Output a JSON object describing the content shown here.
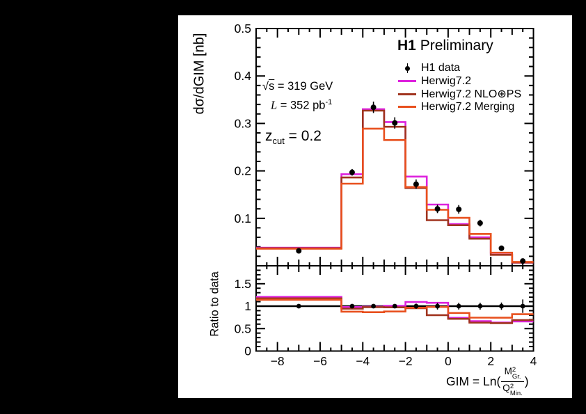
{
  "figure": {
    "background": "#000000",
    "canvas_background": "#ffffff"
  },
  "heading": {
    "experiment": "H1",
    "status": " Preliminary"
  },
  "conditions": {
    "sqrt_symbol": "√",
    "sqrt_var": "s",
    "sqrt_value": " = 319 GeV",
    "lumi_var": "L",
    "lumi_value": " = 352 pb",
    "lumi_exponent": "-1",
    "zcut_var": "z",
    "zcut_sub": "cut",
    "zcut_value": " = 0.2"
  },
  "legend": {
    "entries": [
      {
        "label": "H1 data"
      },
      {
        "label": "Herwig7.2"
      },
      {
        "label": "Herwig7.2 NLO⊕PS"
      },
      {
        "label": "Herwig7.2 Merging"
      }
    ]
  },
  "axes": {
    "main_y_title": "dσ/dGIM [nb]",
    "ratio_y_title": "Ratio to data",
    "x_title_prefix": "GIM = Ln(",
    "x_title_close": ")",
    "fraction": {
      "num_base": "M",
      "num_sup": "2",
      "num_sub": "Gr.",
      "den_base": "Q",
      "den_sup": "2",
      "den_sub": "Min."
    }
  },
  "chart_data": {
    "type": "histogram-with-ratio",
    "x_range": [
      -9,
      4
    ],
    "x_major_ticks": [
      -8,
      -6,
      -4,
      -2,
      0,
      2,
      4
    ],
    "x_tick_labels": [
      "−8",
      "−6",
      "−4",
      "−2",
      "0",
      "2",
      "4"
    ],
    "x_medium_tick_step": 1,
    "x_minor_tick_step": 0.5,
    "main_panel": {
      "ylabel": "dσ/dGIM [nb]",
      "y_range": [
        0,
        0.5
      ],
      "y_major_ticks": [
        0.1,
        0.2,
        0.3,
        0.4,
        0.5
      ],
      "y_tick_labels": [
        "0.1",
        "0.2",
        "0.3",
        "0.4",
        "0.5"
      ],
      "y_minor_tick_step": 0.02
    },
    "ratio_panel": {
      "ylabel": "Ratio to data",
      "y_range": [
        0,
        1.9
      ],
      "y_major_ticks": [
        0,
        0.5,
        1,
        1.5
      ],
      "y_tick_labels": [
        "0",
        "0.5",
        "1",
        "1.5"
      ],
      "y_minor_tick_step": 0.1,
      "reference_line": 1
    },
    "bin_edges": [
      -9,
      -5,
      -4,
      -3,
      -2,
      -1,
      0,
      1,
      2,
      3,
      4
    ],
    "data_points": {
      "name": "H1 data",
      "color": "#000000",
      "x": [
        -7,
        -4.5,
        -3.5,
        -2.5,
        -1.5,
        -0.5,
        0.5,
        1.5,
        2.5,
        3.5
      ],
      "y": [
        0.0315,
        0.197,
        0.334,
        0.301,
        0.172,
        0.12,
        0.119,
        0.09,
        0.037,
        0.01
      ],
      "yerr": [
        0.0015,
        0.007,
        0.012,
        0.012,
        0.01,
        0.009,
        0.009,
        0.007,
        0.003,
        0.0015
      ]
    },
    "series": [
      {
        "name": "Herwig7.2",
        "color": "#dd22dd",
        "values": [
          0.038,
          0.193,
          0.33,
          0.303,
          0.188,
          0.129,
          0.088,
          0.06,
          0.0235,
          0.0066
        ]
      },
      {
        "name": "Herwig7.2 NLO⊕PS",
        "color": "#a0341f",
        "values": [
          0.037,
          0.186,
          0.327,
          0.293,
          0.164,
          0.096,
          0.0855,
          0.057,
          0.023,
          0.0069
        ]
      },
      {
        "name": "Herwig7.2 Merging",
        "color": "#e8501e",
        "values": [
          0.036,
          0.173,
          0.289,
          0.265,
          0.166,
          0.118,
          0.101,
          0.067,
          0.0275,
          0.0082
        ]
      }
    ]
  }
}
